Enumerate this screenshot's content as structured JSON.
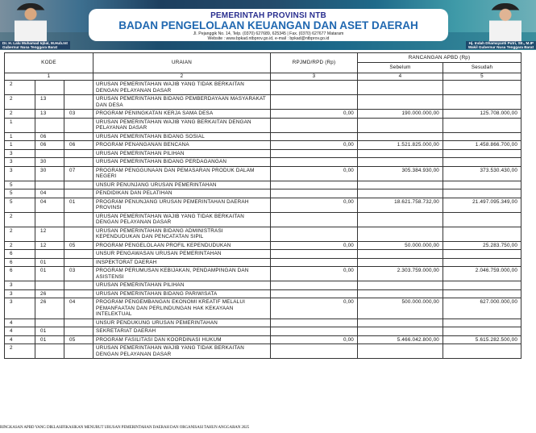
{
  "banner": {
    "line1": "PEMERINTAH PROVINSI NTB",
    "line2": "BADAN PENGELOLAAN KEUANGAN DAN ASET DAERAH",
    "address": "Jl. Pejanggik No. 14, Telp. (0370) 627689, 625345 | Fax. (0370) 627677 Mataram",
    "website": "Website : www.bpkad.ntbprov.go.id, e-mail : bpkad@ntbprov.go.id",
    "left_name": "Dr. H. Lalu Muhamad Iqbal, M.Hub.Int",
    "left_title": "Gubernur Nusa Tenggara Barat",
    "right_name": "Hj. Indah Dhamayanti Putri, SE., M.IP",
    "right_title": "Wakil Gubernur Nusa Tenggara Barat"
  },
  "table": {
    "headers": {
      "kode": "KODE",
      "uraian": "URAIAN",
      "rpjmd": "RPJMD/RPD (Rp)",
      "rancangan": "RANCANGAN APBD (Rp)",
      "sebelum": "Sebelum",
      "sesudah": "Sesudah"
    },
    "numbers": [
      "1",
      "2",
      "3",
      "4",
      "5"
    ],
    "rows": [
      [
        "2",
        "",
        "",
        "URUSAN PEMERINTAHAN WAJIB YANG TIDAK BERKAITAN DENGAN PELAYANAN DASAR",
        "",
        "",
        ""
      ],
      [
        "2",
        "13",
        "",
        "URUSAN PEMERINTAHAN BIDANG PEMBERDAYAAN MASYARAKAT DAN DESA",
        "",
        "",
        ""
      ],
      [
        "2",
        "13",
        "03",
        "PROGRAM PENINGKATAN KERJA SAMA DESA",
        "0,00",
        "190.000.000,00",
        "125.708.000,00"
      ],
      [
        "1",
        "",
        "",
        "URUSAN PEMERINTAHAN WAJIB YANG BERKAITAN DENGAN PELAYANAN DASAR",
        "",
        "",
        ""
      ],
      [
        "1",
        "06",
        "",
        "URUSAN PEMERINTAHAN BIDANG SOSIAL",
        "",
        "",
        ""
      ],
      [
        "1",
        "06",
        "06",
        "PROGRAM PENANGANAN BENCANA",
        "0,00",
        "1.521.825.000,00",
        "1.458.866.700,00"
      ],
      [
        "3",
        "",
        "",
        "URUSAN PEMERINTAHAN PILIHAN",
        "",
        "",
        ""
      ],
      [
        "3",
        "30",
        "",
        "URUSAN PEMERINTAHAN BIDANG PERDAGANGAN",
        "",
        "",
        ""
      ],
      [
        "3",
        "30",
        "07",
        "PROGRAM PENGGUNAAN DAN PEMASARAN PRODUK DALAM NEGERI",
        "0,00",
        "305.384.930,00",
        "373.530.430,00"
      ],
      [
        "5",
        "",
        "",
        "UNSUR PENUNJANG URUSAN PEMERINTAHAN",
        "",
        "",
        ""
      ],
      [
        "5",
        "04",
        "",
        "PENDIDIKAN DAN PELATIHAN",
        "",
        "",
        ""
      ],
      [
        "5",
        "04",
        "01",
        "PROGRAM PENUNJANG URUSAN PEMERINTAHAN DAERAH PROVINSI",
        "0,00",
        "18.621.758.732,00",
        "21.497.095.349,00"
      ],
      [
        "2",
        "",
        "",
        "URUSAN PEMERINTAHAN WAJIB YANG TIDAK BERKAITAN DENGAN PELAYANAN DASAR",
        "",
        "",
        ""
      ],
      [
        "2",
        "12",
        "",
        "URUSAN PEMERINTAHAN BIDANG ADMINISTRASI KEPENDUDUKAN DAN PENCATATAN SIPIL",
        "",
        "",
        ""
      ],
      [
        "2",
        "12",
        "05",
        "PROGRAM PENGELOLAAN PROFIL KEPENDUDUKAN",
        "0,00",
        "50.000.000,00",
        "25.283.750,00"
      ],
      [
        "6",
        "",
        "",
        "UNSUR PENGAWASAN URUSAN PEMERINTAHAN",
        "",
        "",
        ""
      ],
      [
        "6",
        "01",
        "",
        "INSPEKTORAT DAERAH",
        "",
        "",
        ""
      ],
      [
        "6",
        "01",
        "03",
        "PROGRAM PERUMUSAN KEBIJAKAN, PENDAMPINGAN DAN ASISTENSI",
        "0,00",
        "2.303.759.000,00",
        "2.046.759.000,00"
      ],
      [
        "3",
        "",
        "",
        "URUSAN PEMERINTAHAN PILIHAN",
        "",
        "",
        ""
      ],
      [
        "3",
        "26",
        "",
        "URUSAN PEMERINTAHAN BIDANG PARIWISATA",
        "",
        "",
        ""
      ],
      [
        "3",
        "26",
        "04",
        "PROGRAM PENGEMBANGAN EKONOMI KREATIF MELALUI PEMANFAATAN DAN PERLINDUNGAN HAK KEKAYAAN INTELEKTUAL",
        "0,00",
        "500.000.000,00",
        "627.000.000,00"
      ],
      [
        "4",
        "",
        "",
        "UNSUR PENDUKUNG URUSAN PEMERINTAHAN",
        "",
        "",
        ""
      ],
      [
        "4",
        "01",
        "",
        "SEKRETARIAT DAERAH",
        "",
        "",
        ""
      ],
      [
        "4",
        "01",
        "05",
        "PROGRAM FASILITASI DAN KOORDINASI HUKUM",
        "0,00",
        "5.466.042.800,00",
        "5.615.282.500,00"
      ],
      [
        "2",
        "",
        "",
        "URUSAN PEMERINTAHAN WAJIB YANG TIDAK BERKAITAN DENGAN PELAYANAN DASAR",
        "",
        "",
        ""
      ]
    ]
  },
  "footer": "RINGKASAN APBD YANG DIKLASIFIKASIKAN MENURUT URUSAN PEMERINTAHAN DAERAH DAN ORGANISASI TAHUN ANGGARAN 2025"
}
